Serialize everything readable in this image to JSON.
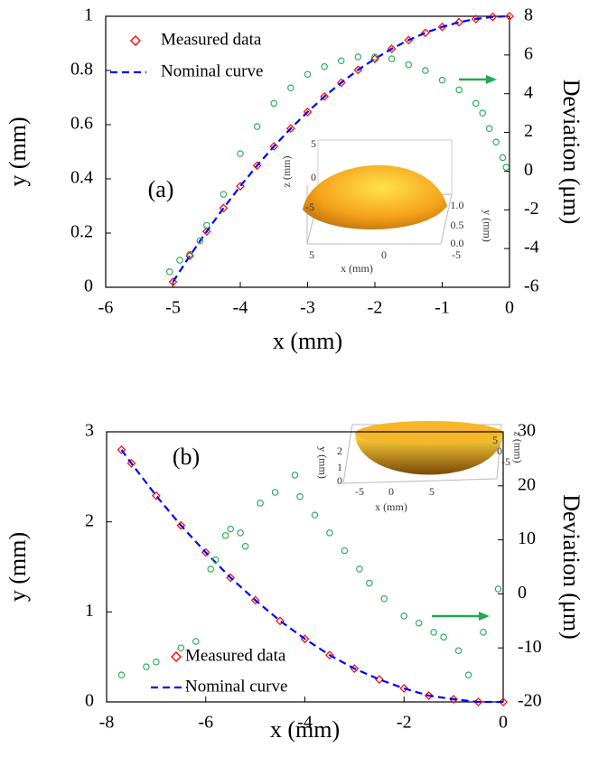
{
  "chart_data": [
    {
      "type": "scatter",
      "annotation": "(a)",
      "xlabel": "x (mm)",
      "ylabel": "y (mm)",
      "y2label": "Deviation (μm)",
      "xlim": [
        -6,
        0
      ],
      "xticks": [
        -6,
        -5,
        -4,
        -3,
        -2,
        -1,
        0
      ],
      "ylim": [
        0,
        1
      ],
      "yticks": [
        0,
        0.2,
        0.4,
        0.6,
        0.8,
        1
      ],
      "y2lim": [
        -6,
        8
      ],
      "y2ticks": [
        -6,
        -4,
        -2,
        0,
        2,
        4,
        6,
        8
      ],
      "legend": "upper left",
      "series": [
        {
          "name": "Measured data",
          "color": "#ff0000",
          "mode": "diamond",
          "x": [
            -5,
            -4.75,
            -4.5,
            -4.25,
            -4,
            -3.75,
            -3.5,
            -3.25,
            -3,
            -2.75,
            -2.5,
            -2.25,
            -2,
            -1.75,
            -1.5,
            -1.25,
            -1,
            -0.75,
            -0.5,
            -0.25,
            0
          ],
          "values": [
            0.02,
            0.116,
            0.206,
            0.292,
            0.373,
            0.449,
            0.52,
            0.586,
            0.647,
            0.704,
            0.755,
            0.802,
            0.843,
            0.88,
            0.912,
            0.939,
            0.961,
            0.978,
            0.99,
            0.998,
            1
          ]
        },
        {
          "name": "Nominal curve",
          "color": "#0000ff",
          "mode": "dashed",
          "x": [
            -5,
            -4.75,
            -4.5,
            -4.25,
            -4,
            -3.75,
            -3.5,
            -3.25,
            -3,
            -2.75,
            -2.5,
            -2.25,
            -2,
            -1.75,
            -1.5,
            -1.25,
            -1,
            -0.75,
            -0.5,
            -0.25,
            0
          ],
          "values": [
            0.02,
            0.116,
            0.206,
            0.292,
            0.373,
            0.449,
            0.52,
            0.586,
            0.647,
            0.704,
            0.755,
            0.802,
            0.843,
            0.88,
            0.912,
            0.939,
            0.961,
            0.978,
            0.99,
            0.998,
            1
          ]
        },
        {
          "color": "#22a84f",
          "mode": "circle",
          "axis": "y2",
          "x": [
            -5.05,
            -4.9,
            -4.75,
            -4.6,
            -4.5,
            -4.25,
            -4,
            -3.75,
            -3.5,
            -3.25,
            -3,
            -2.75,
            -2.5,
            -2.25,
            -2,
            -1.75,
            -1.5,
            -1.25,
            -1,
            -0.75,
            -0.5,
            -0.4,
            -0.3,
            -0.2,
            -0.1,
            -0.05
          ],
          "values": [
            -5.2,
            -4.6,
            -4.3,
            -3.6,
            -2.8,
            -1.2,
            0.9,
            2.3,
            3.5,
            4.3,
            5.0,
            5.4,
            5.7,
            5.9,
            5.9,
            5.8,
            5.5,
            5.2,
            4.7,
            4.2,
            3.5,
            3.0,
            2.2,
            1.5,
            0.7,
            0.2
          ]
        }
      ],
      "inset": {
        "z_label": "z (mm)",
        "y_label": "y (mm)",
        "x_label": "x (mm)",
        "z_ticks": [
          5,
          0,
          -5
        ],
        "y_ticks": [
          {
            "value": 1,
            "label": "1.0"
          },
          {
            "value": 0.5,
            "label": "0.5"
          },
          {
            "value": 0,
            "label": "0.0"
          }
        ],
        "x_ticks": [
          5,
          0,
          -5
        ]
      }
    },
    {
      "type": "scatter",
      "annotation": "(b)",
      "xlabel": "x (mm)",
      "ylabel": "y (mm)",
      "y2label": "Deviation (μm)",
      "xlim": [
        -8,
        0
      ],
      "xticks": [
        -8,
        -6,
        -4,
        -2,
        0
      ],
      "ylim": [
        0,
        3
      ],
      "yticks": [
        0,
        1,
        2,
        3
      ],
      "y2lim": [
        -20,
        30
      ],
      "y2ticks": [
        -20,
        -10,
        0,
        10,
        20,
        30
      ],
      "legend": "lower center",
      "series": [
        {
          "name": "Measured data",
          "color": "#ff0000",
          "mode": "diamond",
          "x": [
            -7.7,
            -7.5,
            -7,
            -6.5,
            -6,
            -5.5,
            -5,
            -4.5,
            -4,
            -3.5,
            -3,
            -2.5,
            -2,
            -1.5,
            -1,
            -0.5,
            0
          ],
          "values": [
            2.8,
            2.65,
            2.29,
            1.96,
            1.66,
            1.38,
            1.13,
            0.9,
            0.7,
            0.52,
            0.37,
            0.25,
            0.15,
            0.07,
            0.03,
            0,
            0
          ]
        },
        {
          "name": "Nominal curve",
          "color": "#0000ff",
          "mode": "dashed",
          "x": [
            -7.7,
            -7.5,
            -7,
            -6.5,
            -6,
            -5.5,
            -5,
            -4.5,
            -4,
            -3.5,
            -3,
            -2.5,
            -2,
            -1.5,
            -1,
            -0.5,
            0
          ],
          "values": [
            2.8,
            2.65,
            2.29,
            1.96,
            1.66,
            1.38,
            1.13,
            0.9,
            0.7,
            0.52,
            0.37,
            0.25,
            0.15,
            0.07,
            0.03,
            0,
            0
          ]
        },
        {
          "color": "#22a84f",
          "mode": "circle",
          "axis": "y2",
          "x": [
            -7.7,
            -7.2,
            -7,
            -6.5,
            -6.2,
            -5.9,
            -5.8,
            -5.6,
            -5.5,
            -5.3,
            -5.2,
            -4.9,
            -4.6,
            -4.2,
            -4.1,
            -3.8,
            -3.5,
            -3.2,
            -2.9,
            -2.7,
            -2.4,
            -2,
            -1.7,
            -1.4,
            -1.2,
            -0.9,
            -0.7,
            -0.4,
            -0.1
          ],
          "values": [
            -15,
            -13.5,
            -12.6,
            -10,
            -8.8,
            4.6,
            6.3,
            10.8,
            12,
            11.3,
            8.8,
            16.8,
            18.8,
            22,
            18,
            14.6,
            11.3,
            8,
            4.6,
            2,
            -0.9,
            -4.1,
            -5.4,
            -7.1,
            -8,
            -10.5,
            -15,
            -7.1,
            0.9
          ]
        }
      ],
      "inset": {
        "z_label": "z (mm)",
        "y_label": "y (mm)",
        "x_label": "x (mm)",
        "z_ticks": [
          5,
          0,
          -5
        ],
        "y_ticks": [
          2,
          1,
          0
        ],
        "x_ticks": [
          -5,
          0,
          5
        ]
      }
    }
  ]
}
